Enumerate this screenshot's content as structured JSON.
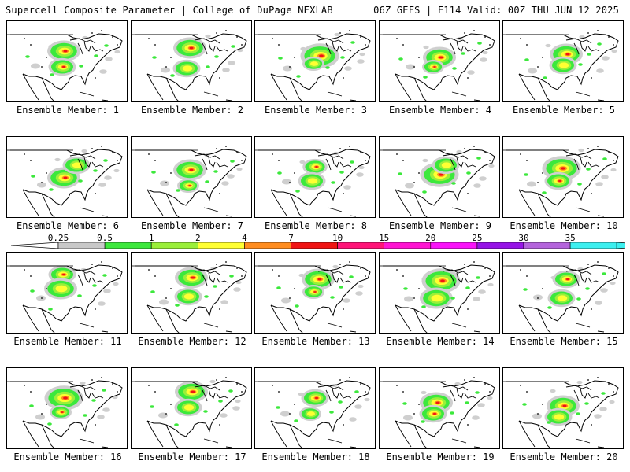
{
  "header": {
    "left_title": "Supercell Composite Parameter | College of DuPage NEXLAB",
    "right_title": "06Z GEFS | F114 Valid: 00Z THU JUN 12 2025"
  },
  "members": [
    "Ensemble Member: 1",
    "Ensemble Member: 2",
    "Ensemble Member: 3",
    "Ensemble Member: 4",
    "Ensemble Member: 5",
    "Ensemble Member: 6",
    "Ensemble Member: 7",
    "Ensemble Member: 8",
    "Ensemble Member: 9",
    "Ensemble Member: 10",
    "Ensemble Member: 11",
    "Ensemble Member: 12",
    "Ensemble Member: 13",
    "Ensemble Member: 14",
    "Ensemble Member: 15",
    "Ensemble Member: 16",
    "Ensemble Member: 17",
    "Ensemble Member: 18",
    "Ensemble Member: 19",
    "Ensemble Member: 20"
  ],
  "legend": {
    "ticks": [
      "0.25",
      "0.5",
      "1",
      "2",
      "4",
      "7",
      "10",
      "15",
      "20",
      "25",
      "30",
      "35"
    ],
    "colors": [
      "#c8c8c8",
      "#3ce83c",
      "#9aef3a",
      "#ffff32",
      "#ff8c1e",
      "#f01414",
      "#ff1478",
      "#ff14d2",
      "#fa14fa",
      "#9614e6",
      "#b464dc",
      "#3cf0f0"
    ]
  }
}
